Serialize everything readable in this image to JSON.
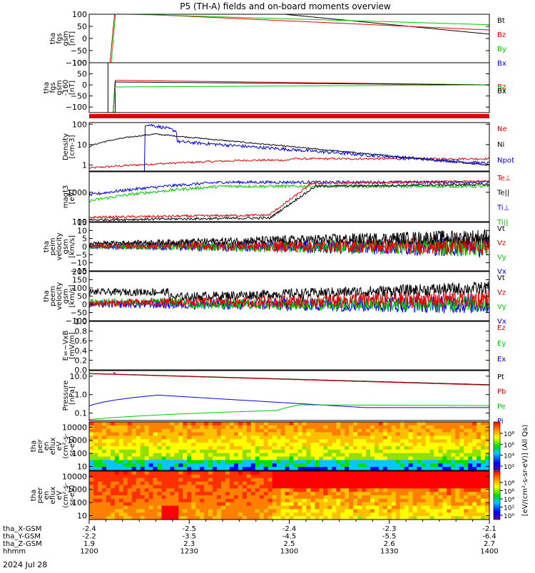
{
  "title": "P5 (TH-A) fields and on-board moments overview",
  "date_label": "2024 Jul 28",
  "colors": {
    "black": "#000000",
    "red": "#e00000",
    "green": "#00c800",
    "blue": "#0000e0"
  },
  "time_axis": {
    "rows": [
      {
        "label": "tha_X-GSM",
        "values": [
          "-2.4",
          "-2.5",
          "-2.4",
          "-2.3",
          "-2.1"
        ]
      },
      {
        "label": "tha_Y-GSM",
        "values": [
          "-2.2",
          "-3.5",
          "-4.5",
          "-5.5",
          "-6.4"
        ]
      },
      {
        "label": "tha_Z-GSM",
        "values": [
          "1.9",
          "2.3",
          "2.5",
          "2.6",
          "2.7"
        ]
      },
      {
        "label": "hhmm",
        "values": [
          "1200",
          "1230",
          "1300",
          "1330",
          "1400"
        ]
      }
    ]
  },
  "chart_data": [
    {
      "type": "line",
      "ylabel_lines": [
        "tha",
        "fgs",
        "gsm",
        "[nT]"
      ],
      "ylim": [
        -100,
        100
      ],
      "ticks": [
        "100",
        "50",
        "0",
        "−50",
        "−100"
      ],
      "tick_values": [
        100,
        50,
        0,
        -50,
        -100
      ],
      "legend": [
        {
          "name": "Bt",
          "color": "black"
        },
        {
          "name": "Bz",
          "color": "red"
        },
        {
          "name": "By",
          "color": "green"
        },
        {
          "name": "Bx",
          "color": "blue"
        }
      ]
    },
    {
      "type": "line",
      "ylabel_lines": [
        "tha",
        "fgs",
        "gsm",
        "-160",
        "[nT]"
      ],
      "ylim": [
        -125,
        100
      ],
      "ticks": [
        "100",
        "50",
        "0",
        "−50",
        "−100"
      ],
      "tick_values": [
        100,
        50,
        0,
        -50,
        -100
      ],
      "legend": [
        {
          "name": "Bz",
          "color": "red"
        },
        {
          "name": "By",
          "color": "green"
        },
        {
          "name": "Bx",
          "color": "black"
        }
      ]
    },
    {
      "type": "line",
      "ylabel_lines": [
        "Density",
        "[cm-3]"
      ],
      "ylim": [
        0.5,
        120
      ],
      "scale": "log",
      "ticks": [
        "100",
        "10",
        "1"
      ],
      "tick_values": [
        100,
        10,
        1
      ],
      "legend": [
        {
          "name": "Ne",
          "color": "red"
        },
        {
          "name": "Ni",
          "color": "black"
        },
        {
          "name": "Npot",
          "color": "blue"
        }
      ]
    },
    {
      "type": "line",
      "ylabel_lines": [
        "magt3",
        "[eV]"
      ],
      "ylim": [
        100,
        5000
      ],
      "scale": "log",
      "ticks": [
        "1000",
        "100"
      ],
      "tick_values": [
        1000,
        100
      ],
      "legend": [
        {
          "name": "Te⊥",
          "color": "red"
        },
        {
          "name": "Te||",
          "color": "black"
        },
        {
          "name": "Ti⊥",
          "color": "blue"
        },
        {
          "name": "Ti||",
          "color": "green"
        }
      ]
    },
    {
      "type": "line",
      "ylabel_lines": [
        "tha",
        "peim",
        "velocity",
        "gsm",
        "[km/s]"
      ],
      "ylim": [
        -15,
        15
      ],
      "ticks": [
        "15",
        "10",
        "5",
        "0",
        "−5",
        "−10",
        "−15"
      ],
      "tick_values": [
        15,
        10,
        5,
        0,
        -5,
        -10,
        -15
      ],
      "legend": [
        {
          "name": "Vt",
          "color": "black"
        },
        {
          "name": "Vz",
          "color": "red"
        },
        {
          "name": "Vy",
          "color": "green"
        },
        {
          "name": "Vx",
          "color": "blue"
        }
      ]
    },
    {
      "type": "line",
      "ylabel_lines": [
        "tha",
        "peem",
        "velocity",
        "gsm",
        "[km/s]"
      ],
      "ylim": [
        -100,
        200
      ],
      "ticks": [
        "200",
        "150",
        "100",
        "50",
        "0",
        "−50",
        "−100"
      ],
      "tick_values": [
        200,
        150,
        100,
        50,
        0,
        -50,
        -100
      ],
      "legend": [
        {
          "name": "Vt",
          "color": "black"
        },
        {
          "name": "Vz",
          "color": "red"
        },
        {
          "name": "Vy",
          "color": "green"
        },
        {
          "name": "Vx",
          "color": "blue"
        }
      ]
    },
    {
      "type": "line",
      "ylabel_lines": [
        "E=−VxB",
        "[mV/m]"
      ],
      "ylim": [
        0,
        1
      ],
      "ticks": [
        "1.0",
        "0.8",
        "0.6",
        "0.4",
        "0.2",
        "0.0"
      ],
      "tick_values": [
        1,
        0.8,
        0.6,
        0.4,
        0.2,
        0
      ],
      "legend": [
        {
          "name": "Ez",
          "color": "red"
        },
        {
          "name": "Ey",
          "color": "green"
        },
        {
          "name": "Ex",
          "color": "blue"
        }
      ]
    },
    {
      "type": "line",
      "ylabel_lines": [
        "Pressure",
        "[nPa]"
      ],
      "ylim": [
        0.04,
        20
      ],
      "scale": "log",
      "ticks": [
        "10.0",
        "1.0",
        "0.1"
      ],
      "tick_values": [
        10,
        1,
        0.1
      ],
      "legend": [
        {
          "name": "Pt",
          "color": "black"
        },
        {
          "name": "Pb",
          "color": "red"
        },
        {
          "name": "Pe",
          "color": "green"
        },
        {
          "name": "Pi",
          "color": "blue"
        }
      ]
    },
    {
      "type": "heatmap",
      "ylabel_lines": [
        "tha",
        "peir",
        "en",
        "eflux",
        "eV",
        "(cm²-s-",
        "sr-eV)"
      ],
      "ylim": [
        5,
        25000
      ],
      "scale": "log",
      "ticks": [
        "10000",
        "1000",
        "100",
        "10"
      ],
      "tick_values": [
        10000,
        1000,
        100,
        10
      ],
      "colorbar_ticks": [
        "10⁸",
        "10⁶",
        "10⁴",
        "10²"
      ]
    },
    {
      "type": "heatmap",
      "ylabel_lines": [
        "tha",
        "peer",
        "en",
        "eflux",
        "eV",
        "(cm²-s-",
        "sr-eV)"
      ],
      "ylim": [
        5,
        25000
      ],
      "scale": "log",
      "ticks": [
        "10000",
        "1000",
        "100",
        "10"
      ],
      "tick_values": [
        10000,
        1000,
        100,
        10
      ],
      "colorbar_ticks": [
        "10⁸",
        "10⁶",
        "10⁴",
        "10²",
        "10⁰"
      ]
    }
  ],
  "colorbar_label": "[eV/(cm²-s-sr-eV)] (All Qs)"
}
